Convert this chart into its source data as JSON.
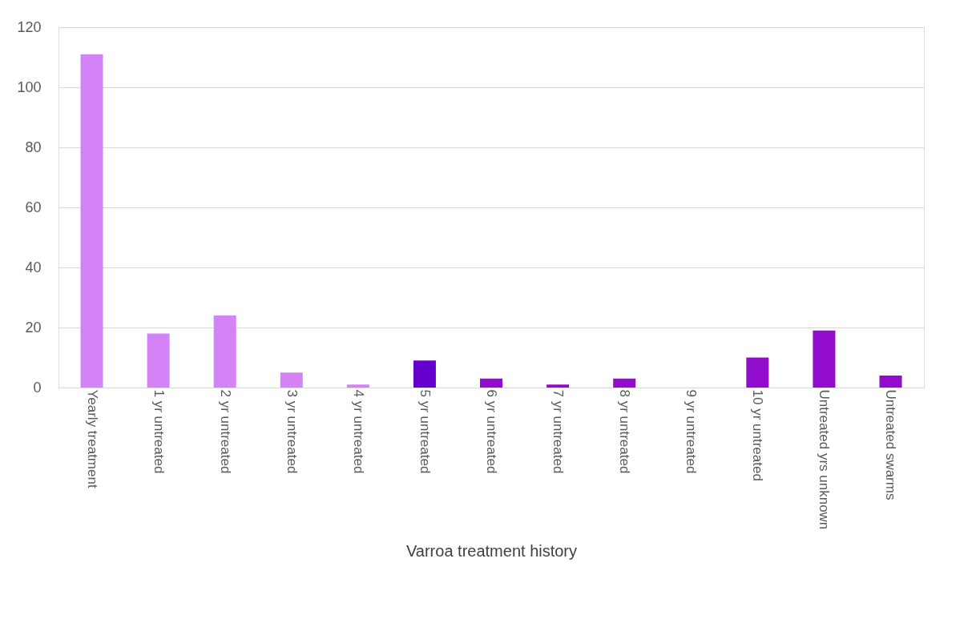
{
  "chart_data": {
    "type": "bar",
    "xlabel": "Varroa treatment history",
    "categories": [
      "Yearly treatment",
      "1 yr untreated",
      "2 yr untreated",
      "3 yr untreated",
      "4 yr untreated",
      "5 yr untreated",
      "6 yr untreated",
      "7 yr untreated",
      "8 yr untreated",
      "9 yr untreated",
      "10 yr untreated",
      "Untreated yrs unknown",
      "Untreated swarms"
    ],
    "values": [
      111,
      18,
      24,
      5,
      1,
      9,
      3,
      1,
      3,
      0,
      10,
      19,
      4
    ],
    "colors": [
      "#d383f5",
      "#d383f5",
      "#d383f5",
      "#d383f5",
      "#d383f5",
      "#6600cc",
      "#910ccc",
      "#910ccc",
      "#910ccc",
      "#910ccc",
      "#910ccc",
      "#910ccc",
      "#910ccc"
    ],
    "ylim": [
      0,
      120
    ],
    "yticks": [
      0,
      20,
      40,
      60,
      80,
      100,
      120
    ],
    "grid": "y"
  }
}
